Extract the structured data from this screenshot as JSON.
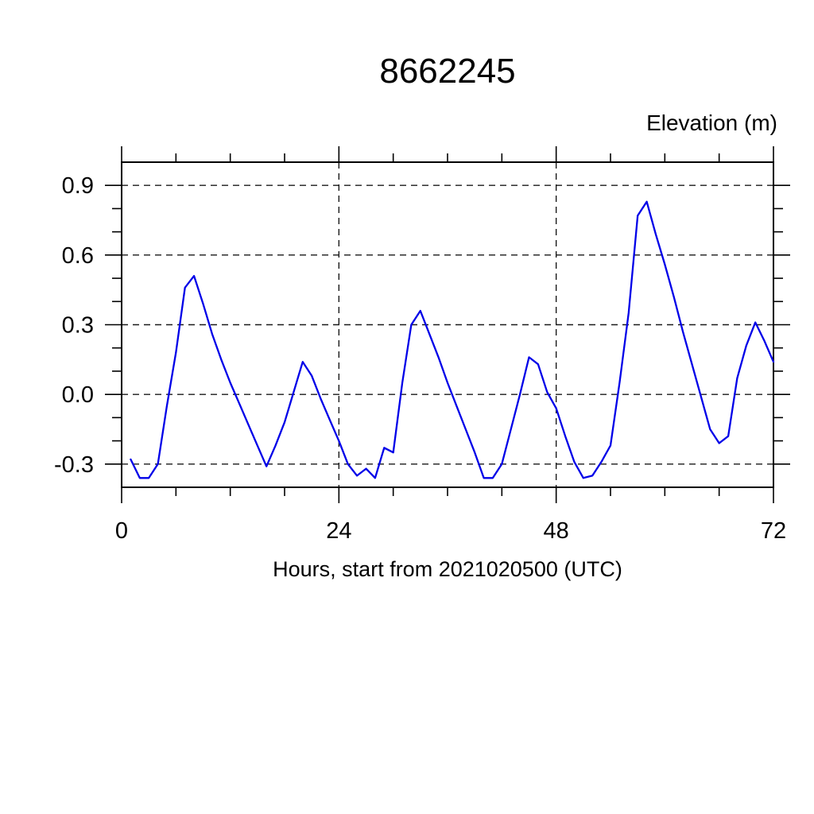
{
  "page": {
    "background": "#ffffff"
  },
  "chart_data": {
    "type": "line",
    "title": "8662245",
    "ylabel": "Elevation (m)",
    "xlabel": "Hours, start from 2021020500 (UTC)",
    "legend_position": "none",
    "grid": "dashed lines at major ticks",
    "xlim": [
      0,
      72
    ],
    "ylim": [
      -0.4,
      1.0
    ],
    "xticks_major": [
      0,
      24,
      48,
      72
    ],
    "xtick_labels": [
      "0",
      "24",
      "48",
      "72"
    ],
    "xticks_minor_step": 6,
    "yticks_major": [
      -0.3,
      0.0,
      0.3,
      0.6,
      0.9
    ],
    "ytick_labels": [
      "-0.3",
      "0.0",
      "0.3",
      "0.6",
      "0.9"
    ],
    "yticks_minor_step": 0.1,
    "line_color": "#0000e8",
    "axis_color": "#000000",
    "grid_color": "#1a1a1a",
    "series": [
      {
        "name": "elevation",
        "x": [
          1,
          2,
          3,
          4,
          5,
          6,
          7,
          8,
          9,
          10,
          11,
          12,
          13,
          14,
          15,
          16,
          17,
          18,
          19,
          20,
          21,
          22,
          23,
          24,
          25,
          26,
          27,
          28,
          29,
          30,
          31,
          32,
          33,
          34,
          35,
          36,
          37,
          38,
          39,
          40,
          41,
          42,
          43,
          44,
          45,
          46,
          47,
          48,
          49,
          50,
          51,
          52,
          53,
          54,
          55,
          56,
          57,
          58,
          59,
          60,
          61,
          62,
          63,
          64,
          65,
          66,
          67,
          68,
          69,
          70,
          71,
          72
        ],
        "y": [
          -0.28,
          -0.36,
          -0.36,
          -0.3,
          -0.05,
          0.18,
          0.46,
          0.51,
          0.39,
          0.26,
          0.15,
          0.05,
          -0.04,
          -0.13,
          -0.22,
          -0.31,
          -0.22,
          -0.12,
          0.01,
          0.14,
          0.08,
          -0.02,
          -0.11,
          -0.2,
          -0.3,
          -0.35,
          -0.32,
          -0.36,
          -0.23,
          -0.25,
          0.05,
          0.3,
          0.36,
          0.26,
          0.16,
          0.05,
          -0.05,
          -0.15,
          -0.25,
          -0.36,
          -0.36,
          -0.3,
          -0.15,
          0.0,
          0.16,
          0.13,
          0.01,
          -0.06,
          -0.18,
          -0.29,
          -0.36,
          -0.35,
          -0.29,
          -0.22,
          0.05,
          0.35,
          0.77,
          0.83,
          0.69,
          0.56,
          0.42,
          0.27,
          0.13,
          -0.01,
          -0.15,
          -0.21,
          -0.18,
          0.07,
          0.21,
          0.31,
          0.23,
          0.14
        ]
      }
    ]
  }
}
